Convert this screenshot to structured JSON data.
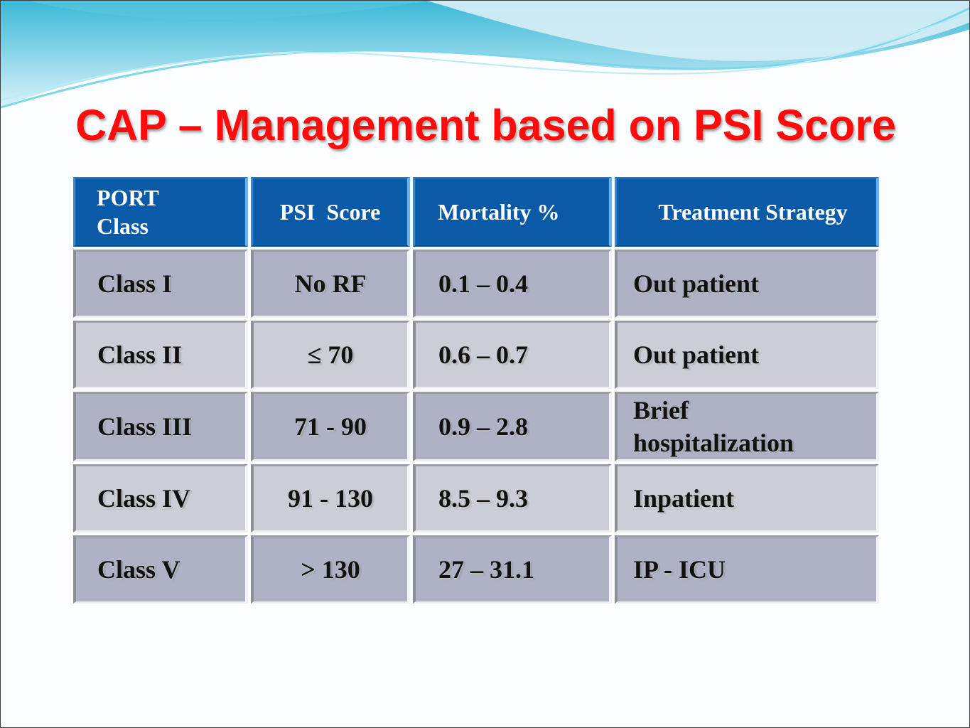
{
  "slide": {
    "title": "CAP – Management based on PSI Score"
  },
  "table": {
    "headers": {
      "port_class_line1": "PORT",
      "port_class_line2": "Class",
      "psi_score": "PSI  Score",
      "mortality": "Mortality %",
      "treatment": "Treatment Strategy"
    },
    "rows": [
      {
        "port_class": "Class I",
        "psi_score": "No RF",
        "mortality": "0.1 – 0.4",
        "treatment": "Out patient"
      },
      {
        "port_class": "Class II",
        "psi_score": "≤ 70",
        "mortality": "0.6 – 0.7",
        "treatment": "Out patient"
      },
      {
        "port_class": "Class III",
        "psi_score": "71 - 90",
        "mortality": "0.9 – 2.8",
        "treatment_line1": "Brief",
        "treatment_line2": "hospitalization"
      },
      {
        "port_class": "Class IV",
        "psi_score": "91 - 130",
        "mortality": "8.5 – 9.3",
        "treatment": "Inpatient"
      },
      {
        "port_class": "Class V",
        "psi_score": "> 130",
        "mortality": "27 – 31.1",
        "treatment": "IP - ICU"
      }
    ]
  },
  "colors": {
    "title": "#ff0b0b",
    "header_bg": "#0b5aa8",
    "row_dark": "#aeb2c4",
    "row_light": "#cbced7"
  }
}
